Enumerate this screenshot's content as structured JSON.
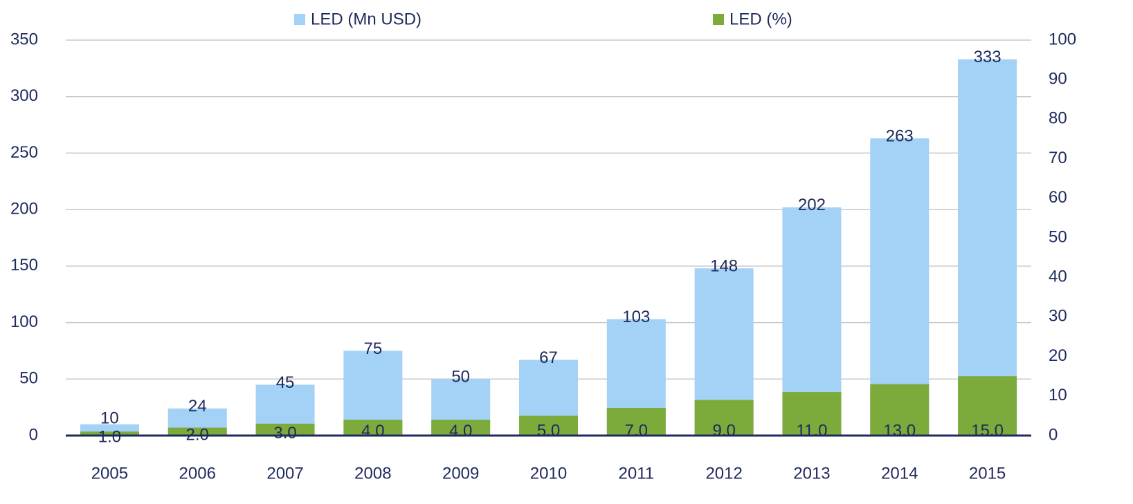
{
  "chart_data": {
    "type": "bar",
    "categories": [
      "2005",
      "2006",
      "2007",
      "2008",
      "2009",
      "2010",
      "2011",
      "2012",
      "2013",
      "2014",
      "2015"
    ],
    "series": [
      {
        "name": "LED (Mn USD)",
        "color": "#a3d2f6",
        "values": [
          10,
          24,
          45,
          75,
          50,
          67,
          103,
          148,
          202,
          263,
          333
        ]
      },
      {
        "name": "LED (%)",
        "color": "#7cab3c",
        "axis": "y2",
        "values": [
          1,
          2,
          3,
          4,
          4,
          5,
          7,
          9,
          11,
          13,
          15
        ],
        "value_labels": [
          "1.0",
          "2.0",
          "3.0",
          "4.0",
          "4.0",
          "5.0",
          "7.0",
          "9.0",
          "11.0",
          "13.0",
          "15.0"
        ]
      }
    ],
    "ylim": [
      0,
      350
    ],
    "yticks": [
      0,
      50,
      100,
      150,
      200,
      250,
      300,
      350
    ],
    "y2lim": [
      0,
      100
    ],
    "y2ticks": [
      0,
      10,
      20,
      30,
      40,
      50,
      60,
      70,
      80,
      90,
      100
    ],
    "grid": true
  }
}
